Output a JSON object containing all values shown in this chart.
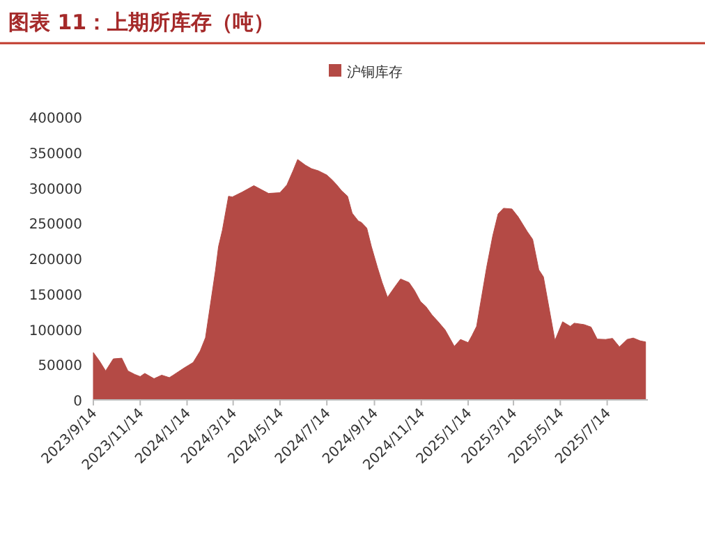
{
  "chart_data": {
    "type": "area",
    "title": "图表 11：上期所库存（吨）",
    "legend": "top",
    "x": [
      "2023-09-14",
      "2023-09-22",
      "2023-09-30",
      "2023-10-10",
      "2023-10-21",
      "2023-10-29",
      "2023-11-07",
      "2023-11-14",
      "2023-11-20",
      "2023-12-02",
      "2023-12-12",
      "2023-12-22",
      "2023-12-27",
      "2024-01-10",
      "2024-01-16",
      "2024-01-22",
      "2024-01-31",
      "2024-02-07",
      "2024-02-20",
      "2024-02-24",
      "2024-02-29",
      "2024-03-08",
      "2024-03-13",
      "2024-03-26",
      "2024-04-10",
      "2024-04-29",
      "2024-05-14",
      "2024-05-23",
      "2024-05-31",
      "2024-06-06",
      "2024-06-16",
      "2024-06-24",
      "2024-07-03",
      "2024-07-14",
      "2024-07-21",
      "2024-07-27",
      "2024-08-02",
      "2024-08-10",
      "2024-08-16",
      "2024-08-24",
      "2024-08-28",
      "2024-09-04",
      "2024-09-10",
      "2024-09-18",
      "2024-09-24",
      "2024-10-01",
      "2024-10-10",
      "2024-10-18",
      "2024-10-29",
      "2024-11-05",
      "2024-11-13",
      "2024-11-20",
      "2024-11-28",
      "2024-12-06",
      "2024-12-15",
      "2024-12-22",
      "2024-12-27",
      "2025-01-04",
      "2025-01-14",
      "2025-01-19",
      "2025-01-25",
      "2025-02-07",
      "2025-02-15",
      "2025-02-22",
      "2025-03-01",
      "2025-03-12",
      "2025-03-20",
      "2025-04-01",
      "2025-04-08",
      "2025-04-16",
      "2025-04-22",
      "2025-05-01",
      "2025-05-07",
      "2025-05-17",
      "2025-05-27",
      "2025-06-01",
      "2025-06-14",
      "2025-06-23",
      "2025-07-01",
      "2025-07-12",
      "2025-07-21",
      "2025-07-30",
      "2025-08-09",
      "2025-08-17",
      "2025-08-26",
      "2025-09-02"
    ],
    "series": [
      {
        "name": "沪铜库存",
        "color": "#b44a45",
        "values": [
          67000,
          55000,
          41000,
          58000,
          59000,
          41000,
          36000,
          33000,
          37500,
          30000,
          35000,
          31500,
          35000,
          45000,
          49000,
          53000,
          69000,
          88000,
          183000,
          217000,
          240000,
          288000,
          287000,
          294000,
          303000,
          292000,
          293000,
          304000,
          324000,
          340000,
          332000,
          327000,
          324000,
          318000,
          311000,
          304000,
          296000,
          288000,
          264000,
          253000,
          251000,
          243000,
          217000,
          187000,
          166000,
          145000,
          159000,
          171000,
          166000,
          155000,
          139000,
          132000,
          120000,
          110500,
          99000,
          85500,
          75700,
          85500,
          81000,
          91000,
          104000,
          187000,
          232000,
          263000,
          271000,
          270000,
          259000,
          238000,
          227000,
          184000,
          174000,
          120000,
          84000,
          110500,
          104000,
          108500,
          106500,
          103000,
          86000,
          85500,
          87000,
          75000,
          85500,
          87500,
          83500,
          82000
        ]
      }
    ],
    "xlim": [
      "2023-09-14",
      "2025-09-05"
    ],
    "ylim": [
      0,
      400000
    ],
    "yticks": [
      0,
      50000,
      100000,
      150000,
      200000,
      250000,
      300000,
      350000,
      400000
    ],
    "xticks": [
      {
        "value": "2023-09-14",
        "label": "2023/9/14"
      },
      {
        "value": "2023-11-14",
        "label": "2023/11/14"
      },
      {
        "value": "2024-01-14",
        "label": "2024/1/14"
      },
      {
        "value": "2024-03-14",
        "label": "2024/3/14"
      },
      {
        "value": "2024-05-14",
        "label": "2024/5/14"
      },
      {
        "value": "2024-07-14",
        "label": "2024/7/14"
      },
      {
        "value": "2024-09-14",
        "label": "2024/9/14"
      },
      {
        "value": "2024-11-14",
        "label": "2024/11/14"
      },
      {
        "value": "2025-01-14",
        "label": "2025/1/14"
      },
      {
        "value": "2025-03-14",
        "label": "2025/3/14"
      },
      {
        "value": "2025-05-14",
        "label": "2025/5/14"
      },
      {
        "value": "2025-07-14",
        "label": "2025/7/14"
      }
    ]
  }
}
